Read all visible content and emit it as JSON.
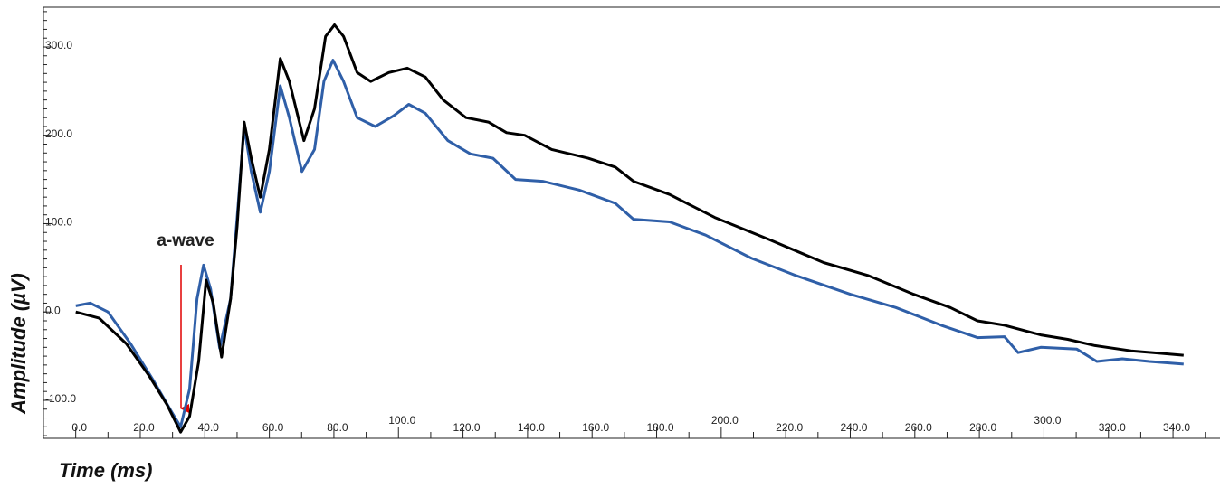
{
  "chart_data": {
    "type": "line",
    "xlabel": "Time (ms)",
    "ylabel": "Amplitude  (µV)",
    "annotation": "a-wave",
    "xlim": [
      -10,
      354
    ],
    "ylim": [
      -143,
      345
    ],
    "xticks": [
      {
        "value": 0,
        "label": "0.0"
      },
      {
        "value": 20,
        "label": "20.0"
      },
      {
        "value": 40,
        "label": "40.0"
      },
      {
        "value": 60,
        "label": "60.0"
      },
      {
        "value": 80,
        "label": "80.0"
      },
      {
        "value": 100,
        "label": "100.0"
      },
      {
        "value": 120,
        "label": "120.0"
      },
      {
        "value": 140,
        "label": "140.0"
      },
      {
        "value": 160,
        "label": "160.0"
      },
      {
        "value": 180,
        "label": "180.0"
      },
      {
        "value": 200,
        "label": "200.0"
      },
      {
        "value": 220,
        "label": "220.0"
      },
      {
        "value": 240,
        "label": "240.0"
      },
      {
        "value": 260,
        "label": "260.0"
      },
      {
        "value": 280,
        "label": "280.0"
      },
      {
        "value": 300,
        "label": "300.0"
      },
      {
        "value": 320,
        "label": "320.0"
      },
      {
        "value": 340,
        "label": "340.0"
      }
    ],
    "yticks": [
      {
        "value": -100,
        "label": "-100.0"
      },
      {
        "value": 0,
        "label": "0.0"
      },
      {
        "value": 100,
        "label": "100.0"
      },
      {
        "value": 200,
        "label": "200.0"
      },
      {
        "value": 300,
        "label": "300.0"
      }
    ],
    "series": [
      {
        "color": "#2f5fa8",
        "x": [
          0,
          4.5,
          10,
          17,
          24,
          29.7,
          32.5,
          35.3,
          37.6,
          39.6,
          41.8,
          44.6,
          48,
          50,
          52.2,
          54.4,
          57.2,
          60,
          63.4,
          66.2,
          70.1,
          74,
          76.9,
          79.7,
          83,
          87.2,
          92.8,
          98.5,
          103.2,
          108.3,
          115.3,
          122.3,
          129.3,
          136.3,
          144.7,
          156,
          167.2,
          172.8,
          184,
          195.2,
          209.3,
          223.3,
          240.1,
          254.1,
          268.2,
          279.4,
          287.8,
          292,
          299,
          310.2,
          316.4,
          324.3,
          332.7,
          343.3
        ],
        "values": [
          7,
          10,
          0,
          -36,
          -77,
          -113,
          -130,
          -87,
          15,
          53,
          26,
          -41,
          15,
          107,
          210,
          159,
          113,
          159,
          256,
          220,
          159,
          184,
          261,
          285,
          261,
          220,
          210,
          222,
          235,
          225,
          194,
          179,
          174,
          150,
          148,
          138,
          123,
          105,
          102,
          87,
          61,
          41,
          20,
          5,
          -15,
          -29,
          -28,
          -46,
          -40,
          -42,
          -56,
          -53,
          -56,
          -59
        ]
      },
      {
        "color": "#000000",
        "x": [
          0,
          7.3,
          15.7,
          22.7,
          28.3,
          32.5,
          35.3,
          38.1,
          40.4,
          42.6,
          45.2,
          48,
          50,
          52.2,
          54.4,
          57.2,
          60,
          63.4,
          66.2,
          70.7,
          74,
          77.4,
          80.2,
          83,
          87.2,
          91.4,
          97,
          102.7,
          108.3,
          113.9,
          120.9,
          127.9,
          133.5,
          139.1,
          147.5,
          158.8,
          167.2,
          172.8,
          184,
          198,
          214.9,
          231.7,
          245.7,
          259.7,
          271,
          279.4,
          287.8,
          299,
          307.4,
          315.8,
          327,
          343.3
        ],
        "values": [
          0,
          -7,
          -36,
          -72,
          -105,
          -136,
          -118,
          -56,
          36,
          10,
          -51,
          15,
          97,
          215,
          174,
          130,
          184,
          287,
          261,
          194,
          230,
          312,
          325,
          312,
          271,
          261,
          271,
          276,
          266,
          240,
          220,
          215,
          203,
          200,
          184,
          174,
          164,
          148,
          133,
          107,
          82,
          56,
          41,
          20,
          5,
          -10,
          -15,
          -26,
          -31,
          -38,
          -44,
          -49
        ]
      }
    ]
  }
}
